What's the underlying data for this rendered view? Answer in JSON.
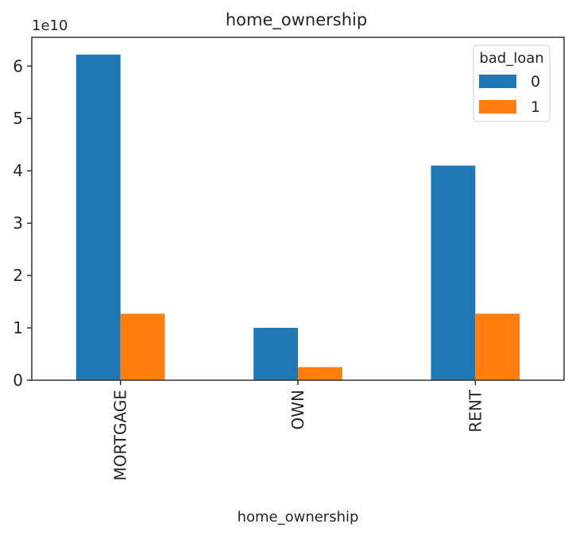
{
  "chart_data": {
    "type": "bar",
    "title": "home_ownership",
    "xlabel": "home_ownership",
    "ylabel": "",
    "y_offset_label": "1e10",
    "categories": [
      "MORTGAGE",
      "OWN",
      "RENT"
    ],
    "series": [
      {
        "name": "0",
        "values": [
          6.22,
          1.0,
          4.1
        ],
        "color": "#1f77b4"
      },
      {
        "name": "1",
        "values": [
          1.27,
          0.25,
          1.27
        ],
        "color": "#ff7f0e"
      }
    ],
    "ylim": [
      0,
      6.55
    ],
    "yticks": [
      "0",
      "1",
      "2",
      "3",
      "4",
      "5",
      "6"
    ],
    "legend": {
      "title": "bad_loan",
      "placement": "top-right"
    },
    "grid": false
  }
}
